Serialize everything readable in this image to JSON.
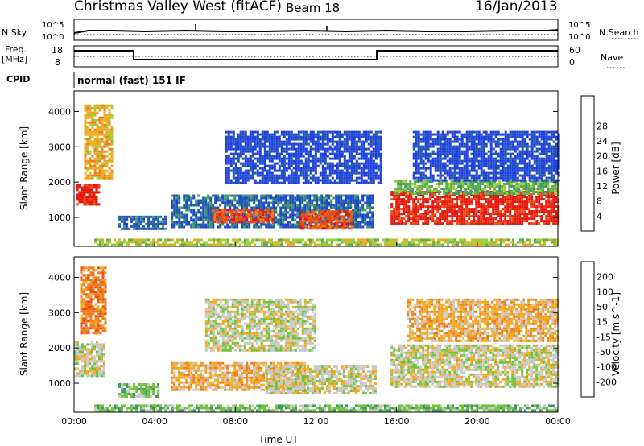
{
  "header": {
    "site": "Christmas Valley West (fitACF)",
    "beam": "Beam 18",
    "date": "16/Jan/2013"
  },
  "top_panels": {
    "nsky_label": "N.Sky",
    "nsky_ticks": [
      "10^5",
      "10^0"
    ],
    "nsearch_label": "N.Search",
    "nsearch_ticks": [
      "10^5",
      "10^0"
    ],
    "freq_label": "Freq.",
    "freq_unit": "[MHz]",
    "freq_ticks": [
      "18",
      "8"
    ],
    "nave_label": "Nave",
    "nave_ticks": [
      "60",
      "0"
    ],
    "cpid_label": "CPID",
    "cpid_text": "normal (fast) 151 IF"
  },
  "chart_data": [
    {
      "type": "heatmap",
      "name": "power-panel",
      "ylabel": "Slant Range [km]",
      "xlabel": "",
      "xlim": [
        0,
        24
      ],
      "ylim": [
        180,
        4580
      ],
      "y_ticks": [
        1000,
        2000,
        3000,
        4000
      ],
      "x_ticks": [
        "00:00",
        "04:00",
        "08:00",
        "12:00",
        "16:00",
        "20:00",
        "00:00"
      ],
      "colorbar": {
        "label": "Power [dB]",
        "ticks": [
          "4",
          "8",
          "12",
          "16",
          "20",
          "24",
          "28"
        ],
        "colors": [
          "#1f3fe0",
          "#1e5aa8",
          "#3c9a6a",
          "#5fb04a",
          "#9fce3a",
          "#f2a81c",
          "#f07a1c",
          "#ee4a12",
          "#e8150c"
        ]
      },
      "regions": [
        {
          "t0": 0.1,
          "t1": 1.2,
          "r0": 1400,
          "r1": 1950,
          "level": 8
        },
        {
          "t0": 0.5,
          "t1": 1.9,
          "r0": 2100,
          "r1": 4200,
          "level": 5
        },
        {
          "t0": 2.2,
          "t1": 4.5,
          "r0": 650,
          "r1": 1050,
          "level": 1
        },
        {
          "t0": 4.8,
          "t1": 14.8,
          "r0": 750,
          "r1": 1650,
          "level": 1
        },
        {
          "t0": 6.8,
          "t1": 9.8,
          "r0": 850,
          "r1": 1250,
          "level": 7
        },
        {
          "t0": 11.2,
          "t1": 13.8,
          "r0": 700,
          "r1": 1200,
          "level": 7
        },
        {
          "t0": 7.5,
          "t1": 15.2,
          "r0": 1950,
          "r1": 3450,
          "level": 0
        },
        {
          "t0": 15.7,
          "t1": 24.0,
          "r0": 800,
          "r1": 1750,
          "level": 8
        },
        {
          "t0": 15.9,
          "t1": 24.0,
          "r0": 1700,
          "r1": 2050,
          "level": 3
        },
        {
          "t0": 16.8,
          "t1": 24.0,
          "r0": 2050,
          "r1": 3450,
          "level": 0
        },
        {
          "t0": 1.0,
          "t1": 24.0,
          "r0": 200,
          "r1": 400,
          "level": 4
        }
      ]
    },
    {
      "type": "heatmap",
      "name": "velocity-panel",
      "ylabel": "Slant Range [km]",
      "xlabel": "Time UT",
      "xlim": [
        0,
        24
      ],
      "ylim": [
        180,
        4580
      ],
      "y_ticks": [
        1000,
        2000,
        3000,
        4000
      ],
      "x_ticks": [
        "00:00",
        "04:00",
        "08:00",
        "12:00",
        "16:00",
        "20:00",
        "00:00"
      ],
      "colorbar": {
        "label": "Velocity [m s^-1]",
        "ticks": [
          "200",
          "100",
          "50",
          "15",
          "-15",
          "-50",
          "-100",
          "-200"
        ],
        "colors": [
          "#1f3fe0",
          "#1e5aa8",
          "#3c9a6a",
          "#6ec43a",
          "#c8c8c8",
          "#f2a81c",
          "#f07a1c",
          "#ee4a12",
          "#e8150c"
        ]
      },
      "regions": [
        {
          "t0": 0.0,
          "t1": 1.5,
          "r0": 1200,
          "r1": 2200,
          "level": 4
        },
        {
          "t0": 0.3,
          "t1": 1.6,
          "r0": 2400,
          "r1": 4300,
          "level": 6
        },
        {
          "t0": 2.2,
          "t1": 4.2,
          "r0": 650,
          "r1": 1000,
          "level": 3
        },
        {
          "t0": 4.8,
          "t1": 11.5,
          "r0": 800,
          "r1": 1600,
          "level": 5
        },
        {
          "t0": 9.5,
          "t1": 15.0,
          "r0": 700,
          "r1": 1500,
          "level": 4
        },
        {
          "t0": 6.5,
          "t1": 12.0,
          "r0": 1900,
          "r1": 3400,
          "level": 4
        },
        {
          "t0": 15.7,
          "t1": 24.0,
          "r0": 900,
          "r1": 2100,
          "level": 4
        },
        {
          "t0": 16.5,
          "t1": 24.0,
          "r0": 2200,
          "r1": 3400,
          "level": 5
        },
        {
          "t0": 1.0,
          "t1": 24.0,
          "r0": 200,
          "r1": 400,
          "level": 3
        }
      ]
    }
  ]
}
